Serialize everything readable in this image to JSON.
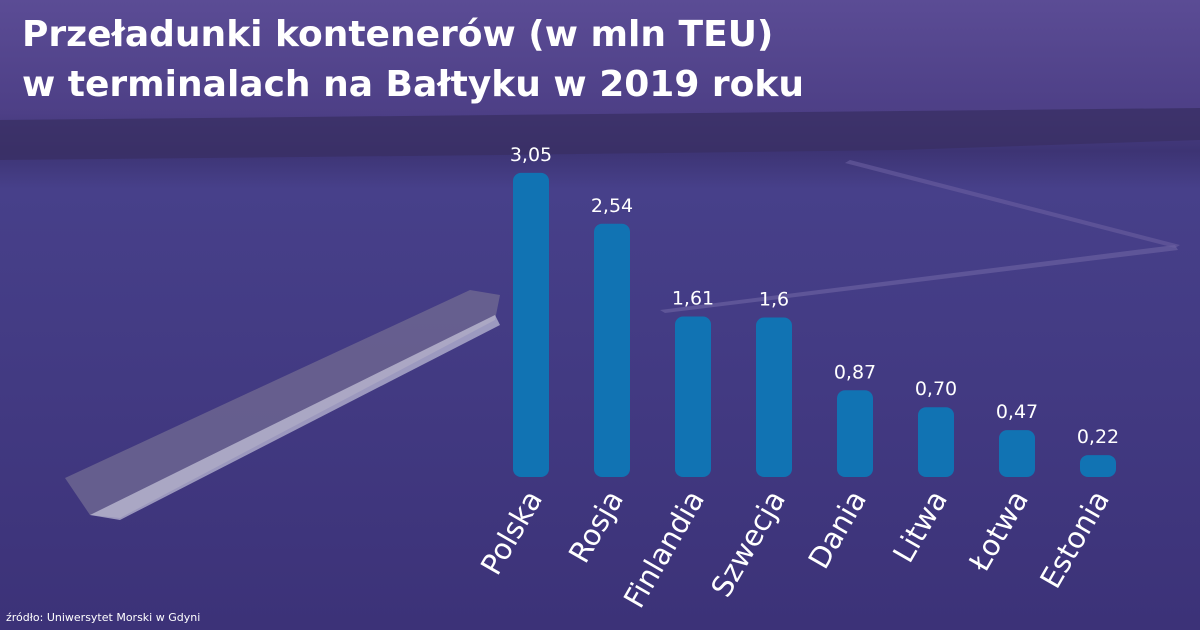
{
  "chart_data": {
    "type": "bar",
    "title": [
      "Przeładunki kontenerów (w mln TEU)",
      "w terminalach na Bałtyku w 2019 roku"
    ],
    "categories": [
      "Polska",
      "Rosja",
      "Finlandia",
      "Szwecja",
      "Dania",
      "Litwa",
      "Łotwa",
      "Estonia"
    ],
    "values": [
      3.05,
      2.54,
      1.61,
      1.6,
      0.87,
      0.7,
      0.47,
      0.22
    ],
    "value_labels": [
      "3,05",
      "2,54",
      "1,61",
      "1,6",
      "0,87",
      "0,70",
      "0,47",
      "0,22"
    ],
    "color": "#1173b3",
    "source": "źródło: Uniwersytet Morski w Gdyni"
  }
}
